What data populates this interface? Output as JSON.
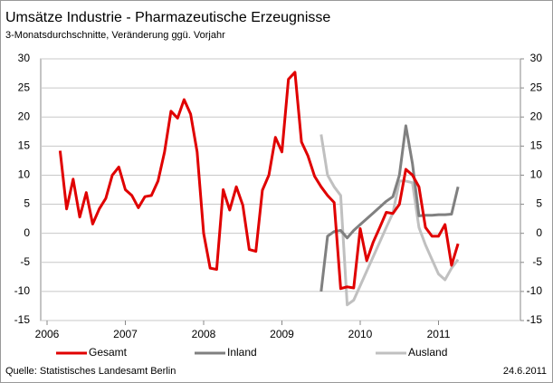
{
  "chart_data": {
    "type": "line",
    "title": "Umsätze Industrie - Pharmazeutische Erzeugnisse",
    "subtitle": "3-Monatsdurchschnitte, Veränderung ggü. Vorjahr",
    "source": "Quelle: Statistisches Landesamt Berlin",
    "date_note": "24.6.2011",
    "xlim": [
      2006,
      2012
    ],
    "xticks": [
      2006,
      2007,
      2008,
      2009,
      2010,
      2011
    ],
    "ylim": [
      -15,
      30
    ],
    "yticks": [
      -15,
      -10,
      -5,
      0,
      5,
      10,
      15,
      20,
      25,
      30
    ],
    "y2lim": [
      -15,
      30
    ],
    "y2ticks": [
      -15,
      -10,
      -5,
      0,
      5,
      10,
      15,
      20,
      25,
      30
    ],
    "grid": true,
    "legend": "bottom",
    "series": [
      {
        "name": "Gesamt",
        "color": "#e00000",
        "x": [
          2006.167,
          2006.25,
          2006.333,
          2006.417,
          2006.5,
          2006.583,
          2006.667,
          2006.75,
          2006.833,
          2006.917,
          2007.0,
          2007.083,
          2007.167,
          2007.25,
          2007.333,
          2007.417,
          2007.5,
          2007.583,
          2007.667,
          2007.75,
          2007.833,
          2007.917,
          2008.0,
          2008.083,
          2008.167,
          2008.25,
          2008.333,
          2008.417,
          2008.5,
          2008.583,
          2008.667,
          2008.75,
          2008.833,
          2008.917,
          2009.0,
          2009.083,
          2009.167,
          2009.25,
          2009.333,
          2009.417,
          2009.5,
          2009.583,
          2009.667,
          2009.75,
          2009.833,
          2009.917,
          2010.0,
          2010.083,
          2010.167,
          2010.25,
          2010.333,
          2010.417,
          2010.5,
          2010.583,
          2010.667,
          2010.75,
          2010.833,
          2010.917,
          2011.0,
          2011.083,
          2011.167,
          2011.25
        ],
        "values": [
          14.2,
          4.2,
          9.3,
          2.8,
          7,
          1.6,
          4.2,
          6,
          10,
          11.4,
          7.5,
          6.5,
          4.4,
          6.3,
          6.5,
          9,
          14,
          21,
          19.8,
          23,
          20.5,
          14,
          0,
          -6,
          -6.2,
          7.5,
          4,
          8,
          4.8,
          -2.8,
          -3.1,
          7.4,
          10,
          16.5,
          14,
          26.5,
          27.7,
          15.7,
          13.3,
          9.8,
          8,
          6.5,
          5.3,
          -9.5,
          -9.2,
          -9.4,
          0.8,
          -4.7,
          -1.5,
          1,
          3.6,
          3.4,
          5,
          11,
          10,
          8,
          1,
          -0.5,
          -0.5,
          1.5,
          -5.5,
          -1.8
        ]
      },
      {
        "name": "Inland",
        "color": "#808080",
        "x": [
          2009.5,
          2009.583,
          2009.667,
          2009.75,
          2009.833,
          2009.917,
          2010.0,
          2010.083,
          2010.167,
          2010.25,
          2010.333,
          2010.417,
          2010.5,
          2010.583,
          2010.667,
          2010.75,
          2010.833,
          2010.917,
          2011.0,
          2011.083,
          2011.167,
          2011.25
        ],
        "values": [
          -10,
          -0.5,
          0.3,
          0.5,
          -0.8,
          0.5,
          1.5,
          2.5,
          3.5,
          4.5,
          5.5,
          6.3,
          10,
          18.5,
          12,
          3,
          3.1,
          3.1,
          3.2,
          3.2,
          3.3,
          8
        ]
      },
      {
        "name": "Ausland",
        "color": "#c0c0c0",
        "x": [
          2009.5,
          2009.583,
          2009.667,
          2009.75,
          2009.833,
          2009.917,
          2010.0,
          2010.083,
          2010.167,
          2010.25,
          2010.333,
          2010.417,
          2010.5,
          2010.583,
          2010.667,
          2010.75,
          2010.833,
          2010.917,
          2011.0,
          2011.083,
          2011.167,
          2011.25
        ],
        "values": [
          17,
          10,
          8,
          6.5,
          -12.3,
          -11.5,
          -9,
          -6.5,
          -4,
          -1.5,
          1,
          3.5,
          9,
          9,
          8.7,
          1,
          -2,
          -4.5,
          -7,
          -8,
          -6,
          -4.5
        ]
      }
    ]
  }
}
